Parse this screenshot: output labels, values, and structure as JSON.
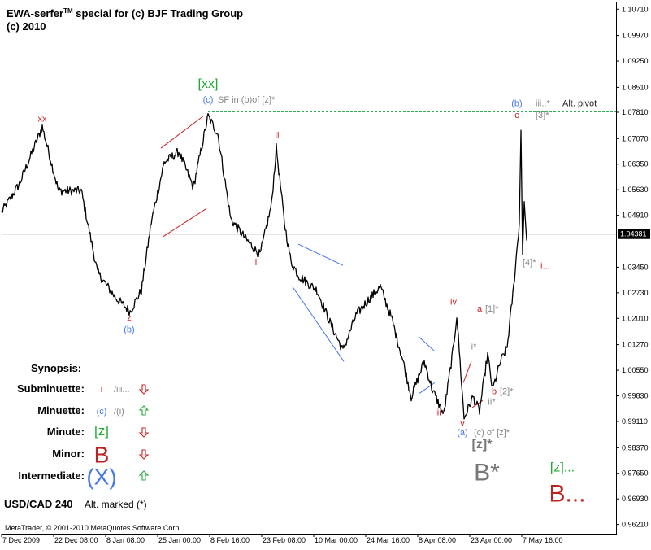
{
  "header": {
    "title_prefix": "EWA-serfer",
    "title_tm": "TM",
    "title_suffix": " special for (c) BJF Trading Group",
    "copyright_line": "(c) 2010"
  },
  "chart_data": {
    "type": "line",
    "symbol": "USD/CAD",
    "timeframe": "240",
    "ylim": [
      0.9595,
      1.109
    ],
    "y_ticks": [
      1.1071,
      1.0997,
      1.0925,
      1.0851,
      1.0781,
      1.0707,
      1.0635,
      1.0563,
      1.0491,
      1.04381,
      1.0345,
      1.0273,
      1.0201,
      1.0127,
      1.0055,
      0.9983,
      0.9911,
      0.9837,
      0.9765,
      0.9693,
      0.9621
    ],
    "y_tick_labels": [
      "1.10710",
      "1.09970",
      "1.09250",
      "1.08510",
      "1.07810",
      "1.07070",
      "1.06350",
      "1.05630",
      "1.04910",
      "1.04381",
      "1.03450",
      "1.02730",
      "1.02010",
      "1.01270",
      "1.00550",
      "0.99830",
      "0.99110",
      "0.98370",
      "0.97650",
      "0.96930",
      "0.96210"
    ],
    "current_price": 1.04381,
    "x_tick_labels": [
      "7 Dec 2009",
      "22 Dec 08:00",
      "8 Jan 08:00",
      "25 Jan 00:00",
      "8 Feb 16:00",
      "23 Feb 08:00",
      "10 Mar 00:00",
      "24 Mar 16:00",
      "8 Apr 08:00",
      "23 Apr 00:00",
      "7 May 16:00"
    ],
    "x_tick_index": [
      0,
      64,
      128,
      192,
      256,
      320,
      384,
      448,
      512,
      576,
      640
    ],
    "price_path": [
      [
        0,
        1.05
      ],
      [
        22,
        1.058
      ],
      [
        50,
        1.074
      ],
      [
        70,
        1.056
      ],
      [
        98,
        1.056
      ],
      [
        118,
        1.033
      ],
      [
        140,
        1.026
      ],
      [
        158,
        1.022
      ],
      [
        172,
        1.028
      ],
      [
        184,
        1.047
      ],
      [
        200,
        1.064
      ],
      [
        218,
        1.067
      ],
      [
        236,
        1.057
      ],
      [
        254,
        1.077
      ],
      [
        266,
        1.072
      ],
      [
        282,
        1.048
      ],
      [
        302,
        1.042
      ],
      [
        318,
        1.038
      ],
      [
        332,
        1.052
      ],
      [
        338,
        1.068
      ],
      [
        348,
        1.047
      ],
      [
        356,
        1.036
      ],
      [
        366,
        1.032
      ],
      [
        388,
        1.028
      ],
      [
        404,
        1.019
      ],
      [
        420,
        1.011
      ],
      [
        436,
        1.021
      ],
      [
        450,
        1.025
      ],
      [
        466,
        1.029
      ],
      [
        480,
        1.02
      ],
      [
        494,
        1.008
      ],
      [
        504,
        0.998
      ],
      [
        520,
        1.008
      ],
      [
        530,
        1.0
      ],
      [
        544,
        0.993
      ],
      [
        556,
        1.012
      ],
      [
        560,
        1.021
      ],
      [
        569,
        0.992
      ],
      [
        580,
        0.998
      ],
      [
        588,
        0.994
      ],
      [
        598,
        1.01
      ],
      [
        604,
        1.0
      ],
      [
        614,
        1.008
      ],
      [
        622,
        1.012
      ],
      [
        630,
        1.029
      ],
      [
        637,
        1.047
      ],
      [
        639,
        1.073
      ],
      [
        641,
        1.038
      ],
      [
        643,
        1.053
      ],
      [
        646,
        1.042
      ]
    ],
    "pivot_level": 1.0782,
    "trend_lines": [
      {
        "from": [
          196,
          1.068
        ],
        "to": [
          248,
          1.077
        ],
        "color": "#cc2222"
      },
      {
        "from": [
          198,
          1.043
        ],
        "to": [
          252,
          1.051
        ],
        "color": "#cc2222"
      },
      {
        "from": [
          365,
          1.041
        ],
        "to": [
          420,
          1.035
        ],
        "color": "#4477ee"
      },
      {
        "from": [
          358,
          1.029
        ],
        "to": [
          421,
          1.008
        ],
        "color": "#4477ee"
      },
      {
        "from": [
          513,
          1.015
        ],
        "to": [
          532,
          1.011
        ],
        "color": "#4477ee"
      },
      {
        "from": [
          514,
          0.999
        ],
        "to": [
          533,
          1.002
        ],
        "color": "#4477ee"
      },
      {
        "from": [
          568,
          1.002
        ],
        "to": [
          578,
          1.008
        ],
        "color": "#cc2222"
      },
      {
        "from": [
          579,
          0.995
        ],
        "to": [
          592,
          0.997
        ],
        "color": "#cc2222"
      }
    ],
    "wave_labels": [
      {
        "text": "xx",
        "x": 52,
        "y": 1.0755,
        "color": "#cc2222",
        "size": 11
      },
      {
        "text": "[xx]",
        "x": 256,
        "y": 1.085,
        "color": "#22aa33",
        "size": 16
      },
      {
        "text": "(c)",
        "x": 256,
        "y": 1.0808,
        "color": "#4477ee",
        "size": 11
      },
      {
        "text": "SF in (b)of [z]*",
        "x": 268,
        "y": 1.0808,
        "color": "#888888",
        "size": 11,
        "anchor": "start"
      },
      {
        "text": "ii",
        "x": 341,
        "y": 1.0708,
        "color": "#cc2222",
        "size": 11
      },
      {
        "text": "z",
        "x": 159,
        "y": 1.0195,
        "color": "#cc2222",
        "size": 11
      },
      {
        "text": "(b)",
        "x": 159,
        "y": 1.0162,
        "color": "#4477ee",
        "size": 11
      },
      {
        "text": "i",
        "x": 315,
        "y": 1.035,
        "color": "#cc2222",
        "size": 11
      },
      {
        "text": "iv",
        "x": 558,
        "y": 1.024,
        "color": "#cc2222",
        "size": 11
      },
      {
        "text": "iii",
        "x": 539,
        "y": 0.9928,
        "color": "#cc2222",
        "size": 11
      },
      {
        "text": "v",
        "x": 569,
        "y": 0.9898,
        "color": "#cc2222",
        "size": 11
      },
      {
        "text": "(a)",
        "x": 569,
        "y": 0.9872,
        "color": "#4477ee",
        "size": 11
      },
      {
        "text": "(c) of [z]*",
        "x": 583,
        "y": 0.9872,
        "color": "#888888",
        "size": 11,
        "anchor": "start"
      },
      {
        "text": "i*",
        "x": 583,
        "y": 1.0113,
        "color": "#888888",
        "size": 11
      },
      {
        "text": "ii*",
        "x": 605,
        "y": 0.9958,
        "color": "#888888",
        "size": 11
      },
      {
        "text": "a",
        "x": 590,
        "y": 1.022,
        "color": "#cc2222",
        "size": 11
      },
      {
        "text": "[1]*",
        "x": 597,
        "y": 1.022,
        "color": "#888888",
        "size": 11,
        "anchor": "start"
      },
      {
        "text": "b",
        "x": 608,
        "y": 0.9988,
        "color": "#cc2222",
        "size": 11
      },
      {
        "text": "[2]*",
        "x": 615,
        "y": 0.9988,
        "color": "#888888",
        "size": 11,
        "anchor": "start"
      },
      {
        "text": "(b)",
        "x": 636,
        "y": 1.0798,
        "color": "#4477ee",
        "size": 11
      },
      {
        "text": "c",
        "x": 636,
        "y": 1.0765,
        "color": "#cc2222",
        "size": 11
      },
      {
        "text": "iii..*",
        "x": 659,
        "y": 1.0798,
        "color": "#888888",
        "size": 11,
        "anchor": "start"
      },
      {
        "text": "Alt. pivot",
        "x": 692,
        "y": 1.0798,
        "color": "#222222",
        "size": 11,
        "anchor": "start"
      },
      {
        "text": "[3]*",
        "x": 659,
        "y": 1.0765,
        "color": "#888888",
        "size": 11,
        "anchor": "start"
      },
      {
        "text": "[4]*",
        "x": 643,
        "y": 1.035,
        "color": "#888888",
        "size": 11,
        "anchor": "start"
      },
      {
        "text": "i...",
        "x": 665,
        "y": 1.034,
        "color": "#cc2222",
        "size": 11,
        "anchor": "start"
      },
      {
        "text": "[z]*",
        "x": 593,
        "y": 0.9835,
        "color": "#777777",
        "size": 16,
        "weight": "bold"
      },
      {
        "text": "B*",
        "x": 599,
        "y": 0.9745,
        "color": "#777777",
        "size": 30
      },
      {
        "text": "[z]...",
        "x": 692,
        "y": 0.977,
        "color": "#22aa33",
        "size": 16
      },
      {
        "text": "B...",
        "x": 698,
        "y": 0.9685,
        "color": "#bb2222",
        "size": 30
      }
    ]
  },
  "synopsis": {
    "title": "Synopsis:",
    "rows": [
      {
        "label": "Subminuette:",
        "wave": "i",
        "wave_color": "#cc2222",
        "wave_size": 11,
        "alt": "/iii...",
        "direction": "down"
      },
      {
        "label": "Minuette:",
        "wave": "(c)",
        "wave_color": "#4477ee",
        "wave_size": 11,
        "alt": "/(i)",
        "direction": "up"
      },
      {
        "label": "Minute:",
        "wave": "[z]",
        "wave_color": "#22aa33",
        "wave_size": 17,
        "alt": "",
        "direction": "down"
      },
      {
        "label": "Minor:",
        "wave": "B",
        "wave_color": "#bb2222",
        "wave_size": 28,
        "alt": "",
        "direction": "down"
      },
      {
        "label": "Intermediate:",
        "wave": "(X)",
        "wave_color": "#4477ee",
        "wave_size": 28,
        "alt": "",
        "direction": "up"
      }
    ]
  },
  "footer": {
    "symbol_label": "USD/CAD 240",
    "note": "Alt. marked (*)",
    "copyright": "MetaTrader, © 2001-2010 MetaQuotes Software Corp."
  },
  "colors": {
    "frame": "#000000",
    "price_line": "#000000",
    "pivot_line": "#33aa55",
    "current_price_line": "#999999",
    "arrow_up": "#22aa33",
    "arrow_down": "#cc2222"
  }
}
